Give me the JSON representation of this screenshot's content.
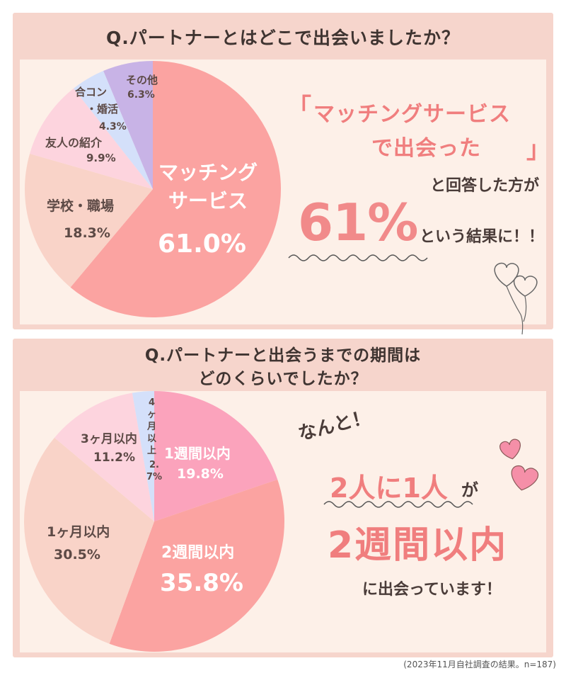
{
  "q1": {
    "title": "Q.パートナーとはどこで出会いましたか？",
    "highlight": {
      "bracket_open": "「",
      "line1": "マッチングサービス",
      "line2": "で出会った",
      "bracket_close": "」",
      "answered": "と回答した方が",
      "big_value": "61%",
      "result": "という結果に！！"
    }
  },
  "q2": {
    "title_line1": "Q.パートナーと出会うまでの期間は",
    "title_line2": "どのくらいでしたか？",
    "highlight": {
      "exclaim": "なんと！",
      "two_in_one": "2人に1人",
      "ga": "が",
      "two_weeks": "2週間以内",
      "meeting": "に出会っています！"
    }
  },
  "footnote": "(2023年11月自社調査の結果。n=187)",
  "chart_data": [
    {
      "type": "pie",
      "categories": [
        "マッチングサービス",
        "学校・職場",
        "友人の紹介",
        "合コン・婚活",
        "その他"
      ],
      "labels_printed": [
        [
          "マッチング",
          "サービス"
        ],
        [
          "学校・職場"
        ],
        [
          "友人の紹介"
        ],
        [
          "合コン",
          "・婚活"
        ],
        [
          "その他"
        ]
      ],
      "values": [
        61.0,
        18.3,
        9.9,
        4.3,
        6.3
      ],
      "value_labels": [
        "61.0%",
        "18.3%",
        "9.9%",
        "4.3%",
        "6.3%"
      ],
      "colors": [
        "#fba3a1",
        "#f9d3c8",
        "#fdd4de",
        "#d4e0fa",
        "#c8b3e6"
      ],
      "start": "top",
      "direction": "clockwise"
    },
    {
      "type": "pie",
      "categories": [
        "1週間以内",
        "2週間以内",
        "1ヶ月以内",
        "3ヶ月以内",
        "4ヶ月以上"
      ],
      "labels_printed": [
        [
          "1週間以内"
        ],
        [
          "2週間以内"
        ],
        [
          "1ヶ月以内"
        ],
        [
          "3ヶ月以内"
        ],
        [
          "4",
          "ヶ",
          "月",
          "以",
          "上"
        ]
      ],
      "values": [
        19.8,
        35.8,
        30.5,
        11.2,
        2.7
      ],
      "value_labels": [
        "19.8%",
        "35.8%",
        "30.5%",
        "11.2%",
        "2.7%"
      ],
      "colors": [
        "#fba3bc",
        "#fba3a1",
        "#f9d3c8",
        "#fdd4de",
        "#d4e0fa"
      ],
      "start": "top",
      "direction": "clockwise"
    }
  ]
}
